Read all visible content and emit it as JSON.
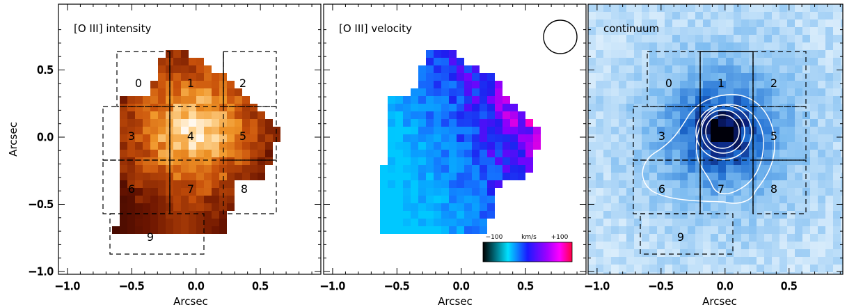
{
  "chart_data": [
    {
      "type": "heatmap",
      "title": "[O III] intensity",
      "xlabel": "Arcsec",
      "ylabel": "Arcsec",
      "xlim": [
        -1.0,
        1.0
      ],
      "ylim": [
        -1.0,
        0.8
      ],
      "x_ticks": [
        -1.0,
        -0.5,
        0.0,
        0.5
      ],
      "y_ticks": [
        0.5,
        0.0,
        -0.5,
        -1.0
      ],
      "x_tick_labels": [
        "−1.0",
        "−0.5",
        "0.0",
        "0.5"
      ],
      "y_tick_labels": [
        "0.5",
        "0.0",
        "−0.5",
        "−1.0"
      ],
      "colormap": [
        "#2b0000",
        "#8a1f00",
        "#e8790a",
        "#fff3e0"
      ],
      "region_labels": [
        "0",
        "1",
        "2",
        "3",
        "4",
        "5",
        "6",
        "7",
        "8",
        "9"
      ]
    },
    {
      "type": "heatmap",
      "title": "[O III] velocity",
      "xlabel": "Arcsec",
      "xlim": [
        -1.0,
        1.0
      ],
      "ylim": [
        -1.0,
        0.8
      ],
      "x_ticks": [
        -1.0,
        -0.5,
        0.0,
        0.5
      ],
      "x_tick_labels": [
        "−1.0",
        "−0.5",
        "0.0",
        "0.5"
      ],
      "colorbar": {
        "min_label": "−100",
        "unit_label": "km/s",
        "max_label": "+100",
        "range": [
          -100,
          100
        ]
      },
      "colormap": [
        "#000000",
        "#00e5ff",
        "#0000ff",
        "#ff00ff",
        "#ff0040"
      ]
    },
    {
      "type": "heatmap",
      "title": "continuum",
      "xlabel": "Arcsec",
      "xlim": [
        -1.0,
        1.0
      ],
      "ylim": [
        -1.0,
        0.8
      ],
      "x_ticks": [
        -1.0,
        -0.5,
        0.0,
        0.5
      ],
      "x_tick_labels": [
        "−1.0",
        "−0.5",
        "0.0",
        "0.5"
      ],
      "colormap": [
        "#ffffff",
        "#8cc8f0",
        "#1f6fd1",
        "#000000"
      ],
      "region_labels": [
        "0",
        "1",
        "2",
        "3",
        "5",
        "6",
        "7",
        "8",
        "9"
      ]
    }
  ]
}
